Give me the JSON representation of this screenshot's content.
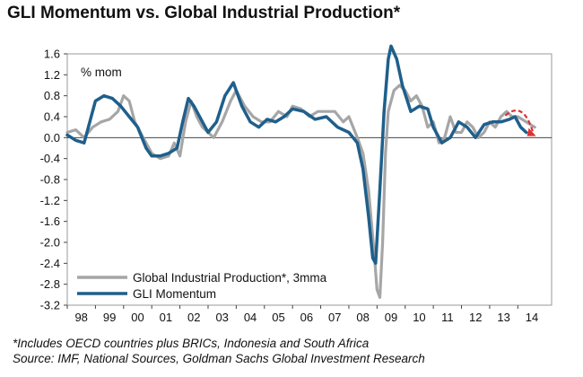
{
  "title": "GLI Momentum vs. Global Industrial Production*",
  "footnotes": {
    "note": "*Includes OECD countries plus BRICs, Indonesia and South Africa",
    "source": "Source: IMF, National Sources, Goldman Sachs Global Investment Research"
  },
  "chart_data": {
    "type": "line",
    "unit_label": "% mom",
    "x_tick_labels": [
      "98",
      "99",
      "00",
      "01",
      "02",
      "03",
      "04",
      "05",
      "06",
      "07",
      "08",
      "09",
      "10",
      "11",
      "12",
      "13",
      "14"
    ],
    "y_ticks": [
      1.6,
      1.2,
      0.8,
      0.4,
      0.0,
      -0.4,
      -0.8,
      -1.2,
      -1.6,
      -2.0,
      -2.4,
      -2.8,
      -3.2
    ],
    "y_tick_labels": [
      "1.6",
      "1.2",
      "0.8",
      "0.4",
      "0.0",
      "-0.4",
      "-0.8",
      "-1.2",
      "-1.6",
      "-2.0",
      "-2.4",
      "-2.8",
      "-3.2"
    ],
    "xlim": [
      1998.0,
      2015.2
    ],
    "ylim": [
      -3.2,
      1.6
    ],
    "grid": false,
    "legend_position": "bottom-left",
    "series": [
      {
        "name": "Global Industrial Production*, 3mma",
        "color": "#a6a6a6",
        "points": [
          [
            1998.0,
            0.1
          ],
          [
            1998.3,
            0.15
          ],
          [
            1998.6,
            0.0
          ],
          [
            1998.9,
            0.2
          ],
          [
            1999.2,
            0.3
          ],
          [
            1999.5,
            0.35
          ],
          [
            1999.8,
            0.5
          ],
          [
            2000.0,
            0.8
          ],
          [
            2000.2,
            0.7
          ],
          [
            2000.4,
            0.3
          ],
          [
            2000.6,
            0.1
          ],
          [
            2000.8,
            -0.1
          ],
          [
            2001.0,
            -0.3
          ],
          [
            2001.3,
            -0.4
          ],
          [
            2001.6,
            -0.35
          ],
          [
            2001.8,
            -0.1
          ],
          [
            2002.0,
            -0.35
          ],
          [
            2002.2,
            0.3
          ],
          [
            2002.4,
            0.7
          ],
          [
            2002.6,
            0.4
          ],
          [
            2002.8,
            0.2
          ],
          [
            2003.0,
            0.1
          ],
          [
            2003.2,
            0.0
          ],
          [
            2003.5,
            0.3
          ],
          [
            2003.8,
            0.7
          ],
          [
            2004.0,
            0.9
          ],
          [
            2004.3,
            0.6
          ],
          [
            2004.6,
            0.4
          ],
          [
            2004.9,
            0.3
          ],
          [
            2005.2,
            0.3
          ],
          [
            2005.5,
            0.5
          ],
          [
            2005.8,
            0.4
          ],
          [
            2006.0,
            0.6
          ],
          [
            2006.3,
            0.55
          ],
          [
            2006.6,
            0.4
          ],
          [
            2006.9,
            0.5
          ],
          [
            2007.2,
            0.5
          ],
          [
            2007.5,
            0.5
          ],
          [
            2007.8,
            0.3
          ],
          [
            2008.0,
            0.4
          ],
          [
            2008.3,
            0.0
          ],
          [
            2008.5,
            -0.3
          ],
          [
            2008.7,
            -1.0
          ],
          [
            2008.9,
            -2.2
          ],
          [
            2009.0,
            -2.9
          ],
          [
            2009.1,
            -3.05
          ],
          [
            2009.2,
            -2.0
          ],
          [
            2009.3,
            -0.3
          ],
          [
            2009.4,
            0.5
          ],
          [
            2009.6,
            0.9
          ],
          [
            2009.8,
            1.0
          ],
          [
            2010.0,
            0.9
          ],
          [
            2010.2,
            0.7
          ],
          [
            2010.4,
            0.8
          ],
          [
            2010.6,
            0.6
          ],
          [
            2010.8,
            0.2
          ],
          [
            2011.0,
            0.3
          ],
          [
            2011.2,
            -0.1
          ],
          [
            2011.4,
            0.0
          ],
          [
            2011.6,
            0.4
          ],
          [
            2011.8,
            0.1
          ],
          [
            2012.0,
            0.1
          ],
          [
            2012.2,
            0.3
          ],
          [
            2012.4,
            0.2
          ],
          [
            2012.6,
            0.0
          ],
          [
            2012.8,
            0.1
          ],
          [
            2013.0,
            0.3
          ],
          [
            2013.2,
            0.2
          ],
          [
            2013.4,
            0.4
          ],
          [
            2013.6,
            0.5
          ],
          [
            2013.8,
            0.4
          ],
          [
            2014.0,
            0.4
          ],
          [
            2014.3,
            0.3
          ],
          [
            2014.6,
            0.2
          ]
        ]
      },
      {
        "name": "GLI Momentum",
        "color": "#1f5f8b",
        "points": [
          [
            1998.0,
            0.05
          ],
          [
            1998.3,
            -0.05
          ],
          [
            1998.6,
            -0.1
          ],
          [
            1998.8,
            0.3
          ],
          [
            1999.0,
            0.7
          ],
          [
            1999.3,
            0.8
          ],
          [
            1999.6,
            0.75
          ],
          [
            1999.9,
            0.6
          ],
          [
            2000.2,
            0.4
          ],
          [
            2000.5,
            0.2
          ],
          [
            2000.8,
            -0.2
          ],
          [
            2001.0,
            -0.35
          ],
          [
            2001.3,
            -0.35
          ],
          [
            2001.6,
            -0.3
          ],
          [
            2001.9,
            -0.2
          ],
          [
            2002.1,
            0.3
          ],
          [
            2002.3,
            0.75
          ],
          [
            2002.5,
            0.6
          ],
          [
            2002.8,
            0.3
          ],
          [
            2003.0,
            0.1
          ],
          [
            2003.3,
            0.3
          ],
          [
            2003.6,
            0.8
          ],
          [
            2003.9,
            1.05
          ],
          [
            2004.2,
            0.6
          ],
          [
            2004.5,
            0.3
          ],
          [
            2004.8,
            0.2
          ],
          [
            2005.1,
            0.35
          ],
          [
            2005.4,
            0.3
          ],
          [
            2005.7,
            0.4
          ],
          [
            2006.0,
            0.55
          ],
          [
            2006.4,
            0.5
          ],
          [
            2006.8,
            0.35
          ],
          [
            2007.2,
            0.4
          ],
          [
            2007.6,
            0.2
          ],
          [
            2008.0,
            0.1
          ],
          [
            2008.3,
            -0.1
          ],
          [
            2008.5,
            -0.6
          ],
          [
            2008.7,
            -1.5
          ],
          [
            2008.85,
            -2.3
          ],
          [
            2008.95,
            -2.4
          ],
          [
            2009.1,
            -1.0
          ],
          [
            2009.25,
            0.5
          ],
          [
            2009.4,
            1.5
          ],
          [
            2009.5,
            1.75
          ],
          [
            2009.7,
            1.5
          ],
          [
            2009.9,
            1.0
          ],
          [
            2010.2,
            0.5
          ],
          [
            2010.5,
            0.6
          ],
          [
            2010.8,
            0.55
          ],
          [
            2011.0,
            0.2
          ],
          [
            2011.3,
            -0.1
          ],
          [
            2011.6,
            0.0
          ],
          [
            2011.9,
            0.3
          ],
          [
            2012.2,
            0.2
          ],
          [
            2012.5,
            0.0
          ],
          [
            2012.8,
            0.25
          ],
          [
            2013.1,
            0.3
          ],
          [
            2013.4,
            0.3
          ],
          [
            2013.7,
            0.35
          ],
          [
            2013.9,
            0.4
          ],
          [
            2014.1,
            0.2
          ],
          [
            2014.3,
            0.1
          ]
        ]
      }
    ],
    "forecast_arrow_color": "#e03030"
  }
}
